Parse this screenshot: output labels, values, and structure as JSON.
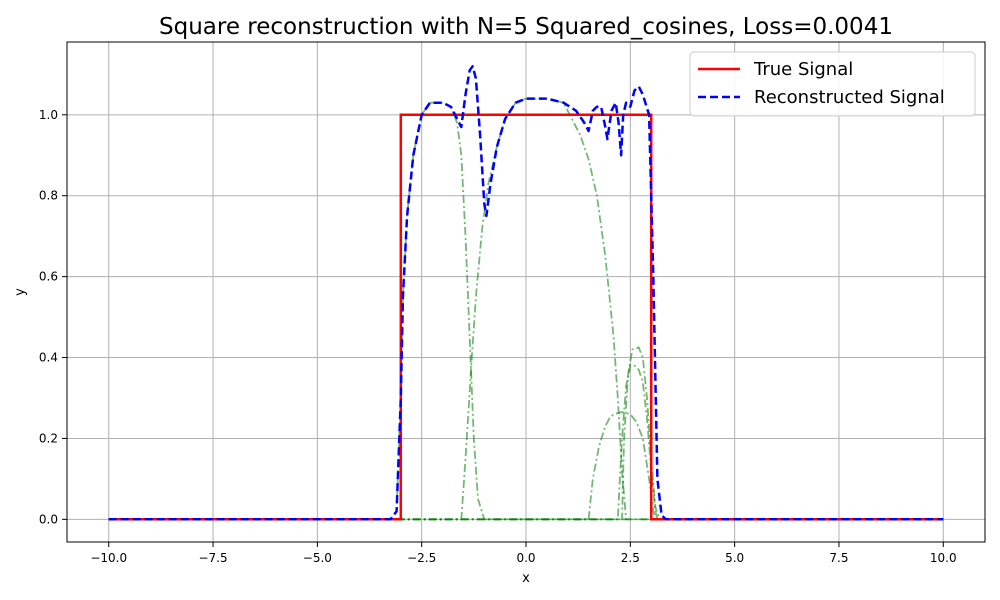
{
  "chart_data": {
    "type": "line",
    "title": "Square reconstruction with N=5 Squared_cosines, Loss=0.0041",
    "xlabel": "x",
    "ylabel": "y",
    "xlim": [
      -11,
      11
    ],
    "ylim": [
      -0.056,
      1.18
    ],
    "x_ticks": [
      -10.0,
      -7.5,
      -5.0,
      -2.5,
      0.0,
      2.5,
      5.0,
      7.5,
      10.0
    ],
    "x_tick_labels": [
      "−10.0",
      "−7.5",
      "−5.0",
      "−2.5",
      "0.0",
      "2.5",
      "5.0",
      "7.5",
      "10.0"
    ],
    "y_ticks": [
      0.0,
      0.2,
      0.4,
      0.6,
      0.8,
      1.0
    ],
    "y_tick_labels": [
      "0.0",
      "0.2",
      "0.4",
      "0.6",
      "0.8",
      "1.0"
    ],
    "grid": true,
    "legend_position": "top-right",
    "colors": {
      "true_signal": "#ff0000",
      "reconstructed": "#0000ff",
      "components": "#008000"
    },
    "series": [
      {
        "name": "True Signal",
        "style": "solid",
        "points": [
          [
            -10,
            0
          ],
          [
            -3.0,
            0
          ],
          [
            -3.0,
            1.0
          ],
          [
            3.0,
            1.0
          ],
          [
            3.0,
            0
          ],
          [
            10,
            0
          ]
        ]
      },
      {
        "name": "Reconstructed Signal",
        "style": "dashed",
        "points": [
          [
            -10,
            0
          ],
          [
            -3.25,
            0
          ],
          [
            -3.1,
            0.02
          ],
          [
            -3.0,
            0.3
          ],
          [
            -2.95,
            0.55
          ],
          [
            -2.85,
            0.75
          ],
          [
            -2.7,
            0.9
          ],
          [
            -2.5,
            1.0
          ],
          [
            -2.3,
            1.03
          ],
          [
            -2.0,
            1.03
          ],
          [
            -1.8,
            1.02
          ],
          [
            -1.6,
            0.98
          ],
          [
            -1.55,
            0.97
          ],
          [
            -1.45,
            1.05
          ],
          [
            -1.35,
            1.11
          ],
          [
            -1.28,
            1.12
          ],
          [
            -1.2,
            1.09
          ],
          [
            -1.1,
            0.95
          ],
          [
            -1.0,
            0.78
          ],
          [
            -0.95,
            0.75
          ],
          [
            -0.85,
            0.83
          ],
          [
            -0.7,
            0.92
          ],
          [
            -0.5,
            0.99
          ],
          [
            -0.25,
            1.03
          ],
          [
            0.0,
            1.04
          ],
          [
            0.5,
            1.04
          ],
          [
            0.9,
            1.03
          ],
          [
            1.2,
            1.01
          ],
          [
            1.4,
            0.98
          ],
          [
            1.5,
            0.96
          ],
          [
            1.6,
            1.01
          ],
          [
            1.7,
            1.02
          ],
          [
            1.8,
            1.02
          ],
          [
            1.9,
            0.97
          ],
          [
            1.95,
            0.94
          ],
          [
            2.05,
            1.01
          ],
          [
            2.15,
            1.03
          ],
          [
            2.22,
            0.98
          ],
          [
            2.28,
            0.9
          ],
          [
            2.33,
            1.0
          ],
          [
            2.4,
            1.03
          ],
          [
            2.5,
            1.02
          ],
          [
            2.6,
            1.06
          ],
          [
            2.7,
            1.07
          ],
          [
            2.8,
            1.05
          ],
          [
            2.95,
            1.0
          ],
          [
            3.05,
            0.6
          ],
          [
            3.15,
            0.1
          ],
          [
            3.25,
            0.01
          ],
          [
            3.35,
            0
          ],
          [
            10,
            0
          ]
        ]
      }
    ],
    "components": [
      {
        "points": [
          [
            -10,
            0
          ],
          [
            -3.25,
            0
          ],
          [
            -3.1,
            0.02
          ],
          [
            -3.0,
            0.3
          ],
          [
            -2.95,
            0.55
          ],
          [
            -2.85,
            0.75
          ],
          [
            -2.7,
            0.9
          ],
          [
            -2.5,
            1.0
          ],
          [
            -2.3,
            1.03
          ],
          [
            -2.0,
            1.03
          ],
          [
            -1.8,
            1.02
          ],
          [
            -1.65,
            0.98
          ],
          [
            -1.55,
            0.9
          ],
          [
            -1.45,
            0.7
          ],
          [
            -1.35,
            0.45
          ],
          [
            -1.25,
            0.2
          ],
          [
            -1.15,
            0.05
          ],
          [
            -1.0,
            0
          ],
          [
            10,
            0
          ]
        ]
      },
      {
        "points": [
          [
            -10,
            0
          ],
          [
            -1.55,
            0
          ],
          [
            -1.45,
            0.15
          ],
          [
            -1.3,
            0.4
          ],
          [
            -1.2,
            0.55
          ],
          [
            -1.05,
            0.72
          ],
          [
            -0.9,
            0.83
          ],
          [
            -0.7,
            0.92
          ],
          [
            -0.5,
            0.99
          ],
          [
            -0.25,
            1.03
          ],
          [
            0.0,
            1.04
          ],
          [
            0.5,
            1.04
          ],
          [
            0.9,
            1.03
          ],
          [
            1.1,
            0.99
          ],
          [
            1.3,
            0.95
          ],
          [
            1.5,
            0.89
          ],
          [
            1.7,
            0.8
          ],
          [
            1.9,
            0.65
          ],
          [
            2.0,
            0.55
          ],
          [
            2.1,
            0.45
          ],
          [
            2.2,
            0.3
          ],
          [
            2.3,
            0.12
          ],
          [
            2.4,
            0
          ],
          [
            10,
            0
          ]
        ]
      },
      {
        "points": [
          [
            -10,
            0
          ],
          [
            1.5,
            0
          ],
          [
            1.6,
            0.1
          ],
          [
            1.75,
            0.18
          ],
          [
            1.9,
            0.23
          ],
          [
            2.0,
            0.25
          ],
          [
            2.1,
            0.26
          ],
          [
            2.3,
            0.265
          ],
          [
            2.5,
            0.26
          ],
          [
            2.65,
            0.24
          ],
          [
            2.8,
            0.2
          ],
          [
            2.95,
            0.1
          ],
          [
            3.05,
            0.02
          ],
          [
            3.1,
            0
          ],
          [
            10,
            0
          ]
        ]
      },
      {
        "points": [
          [
            -10,
            0
          ],
          [
            2.2,
            0
          ],
          [
            2.3,
            0.2
          ],
          [
            2.4,
            0.33
          ],
          [
            2.5,
            0.38
          ],
          [
            2.6,
            0.38
          ],
          [
            2.7,
            0.37
          ],
          [
            2.8,
            0.34
          ],
          [
            2.9,
            0.25
          ],
          [
            3.0,
            0.12
          ],
          [
            3.1,
            0.02
          ],
          [
            3.15,
            0
          ],
          [
            10,
            0
          ]
        ]
      },
      {
        "points": [
          [
            -10,
            0
          ],
          [
            2.3,
            0
          ],
          [
            2.35,
            0.2
          ],
          [
            2.45,
            0.36
          ],
          [
            2.55,
            0.42
          ],
          [
            2.7,
            0.425
          ],
          [
            2.8,
            0.4
          ],
          [
            2.9,
            0.3
          ],
          [
            3.0,
            0.15
          ],
          [
            3.1,
            0.03
          ],
          [
            3.2,
            0
          ],
          [
            10,
            0
          ]
        ]
      }
    ]
  }
}
